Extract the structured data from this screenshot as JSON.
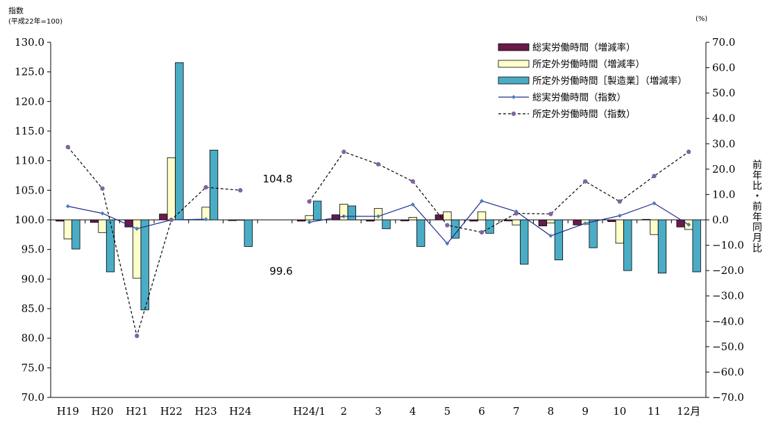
{
  "chart_data": {
    "type": "bar",
    "left_axis_title": "指数",
    "left_axis_subtitle": "(平成22年=100)",
    "right_axis_unit": "(%)",
    "right_axis_title": "前年比・前年同月比",
    "left_axis": {
      "min": 70,
      "max": 130,
      "step": 5,
      "ticks": [
        "130.0",
        "125.0",
        "120.0",
        "115.0",
        "110.0",
        "105.0",
        "100.0",
        "95.0",
        "90.0",
        "85.0",
        "80.0",
        "75.0",
        "70.0"
      ]
    },
    "right_axis": {
      "min": -70,
      "max": 70,
      "step": 10,
      "ticks": [
        "70.0",
        "60.0",
        "50.0",
        "40.0",
        "30.0",
        "20.0",
        "10.0",
        "0.0",
        "−10.0",
        "−20.0",
        "−30.0",
        "−40.0",
        "−50.0",
        "−60.0",
        "−70.0"
      ]
    },
    "categories": [
      "H19",
      "H20",
      "H21",
      "H22",
      "H23",
      "H24",
      "",
      "H24/1",
      "2",
      "3",
      "4",
      "5",
      "6",
      "7",
      "8",
      "9",
      "10",
      "11",
      "12月"
    ],
    "bar_series": [
      {
        "name": "総実労働時間（増減率）",
        "color": "#6B1A4A",
        "values": [
          -0.5,
          -1.0,
          -2.8,
          2.3,
          0.2,
          -0.3,
          null,
          -0.5,
          2.0,
          -0.5,
          -0.4,
          2.0,
          -0.5,
          -0.4,
          -2.4,
          -2.0,
          -0.7,
          0.2,
          -2.8
        ]
      },
      {
        "name": "所定外労働時間（増減率）",
        "color": "#FFFFCC",
        "values": [
          -7.5,
          -5.0,
          -23.0,
          24.5,
          5.0,
          0.0,
          null,
          1.7,
          6.2,
          4.5,
          1.0,
          3.2,
          3.2,
          -2.0,
          -1.2,
          -1.7,
          -9.2,
          -5.8,
          -3.8
        ]
      },
      {
        "name": "所定外労働時間［製造業］（増減率）",
        "color": "#4BACC6",
        "values": [
          -11.5,
          -20.5,
          -35.5,
          62.0,
          27.5,
          -10.5,
          null,
          7.4,
          5.5,
          -3.5,
          -10.5,
          -7.2,
          -5.3,
          -17.5,
          -15.8,
          -11.0,
          -20.0,
          -21.0,
          -20.5
        ]
      }
    ],
    "line_series": [
      {
        "name": "総実労働時間（指数）",
        "color": "#1F2A8A",
        "style": "solid",
        "values": [
          102.3,
          101.1,
          98.5,
          100.0,
          100.1,
          null,
          null,
          null,
          100.6,
          100.6,
          102.6,
          96.0,
          103.2,
          101.4,
          97.3,
          99.4,
          100.7,
          102.8,
          99.2
        ]
      },
      {
        "name": "所定外労働時間（指数）",
        "color": "#000000",
        "style": "dashed",
        "values": [
          112.3,
          105.3,
          80.4,
          100.0,
          105.5,
          105.0,
          null,
          103.1,
          111.5,
          109.4,
          106.5,
          99.1,
          97.9,
          101.1,
          101.0,
          106.5,
          103.1,
          107.4,
          111.5
        ]
      }
    ],
    "annotations": [
      {
        "text": "104.8",
        "value": 104.8
      },
      {
        "text": "99.6",
        "value": 99.6
      }
    ]
  }
}
